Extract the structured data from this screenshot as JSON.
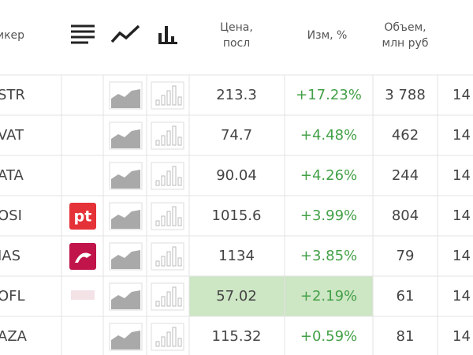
{
  "header": {
    "ticker": "икер",
    "price": [
      "Цена,",
      "посл"
    ],
    "change": "Изм, %",
    "volume": [
      "Объем,",
      "млн руб"
    ]
  },
  "rows": [
    {
      "ticker": "STR",
      "price": "213.3",
      "change": "+17.23%",
      "volume": "3 788",
      "last": "14"
    },
    {
      "ticker": "VAT",
      "price": "74.7",
      "change": "+4.48%",
      "volume": "462",
      "last": "14"
    },
    {
      "ticker": "ATA",
      "price": "90.04",
      "change": "+4.26%",
      "volume": "244",
      "last": "14"
    },
    {
      "ticker": "OSI",
      "logo": "pt",
      "price": "1015.6",
      "change": "+3.99%",
      "volume": "804",
      "last": "14"
    },
    {
      "ticker": "IAS",
      "price": "1134",
      "change": "+3.85%",
      "volume": "79",
      "last": "14"
    },
    {
      "ticker": "OFL",
      "price": "57.02",
      "change": "+2.19%",
      "volume": "61",
      "last": "14",
      "highlighted": true
    },
    {
      "ticker": "AZA",
      "price": "115.32",
      "change": "+0.59%",
      "volume": "81",
      "last": "14"
    }
  ]
}
